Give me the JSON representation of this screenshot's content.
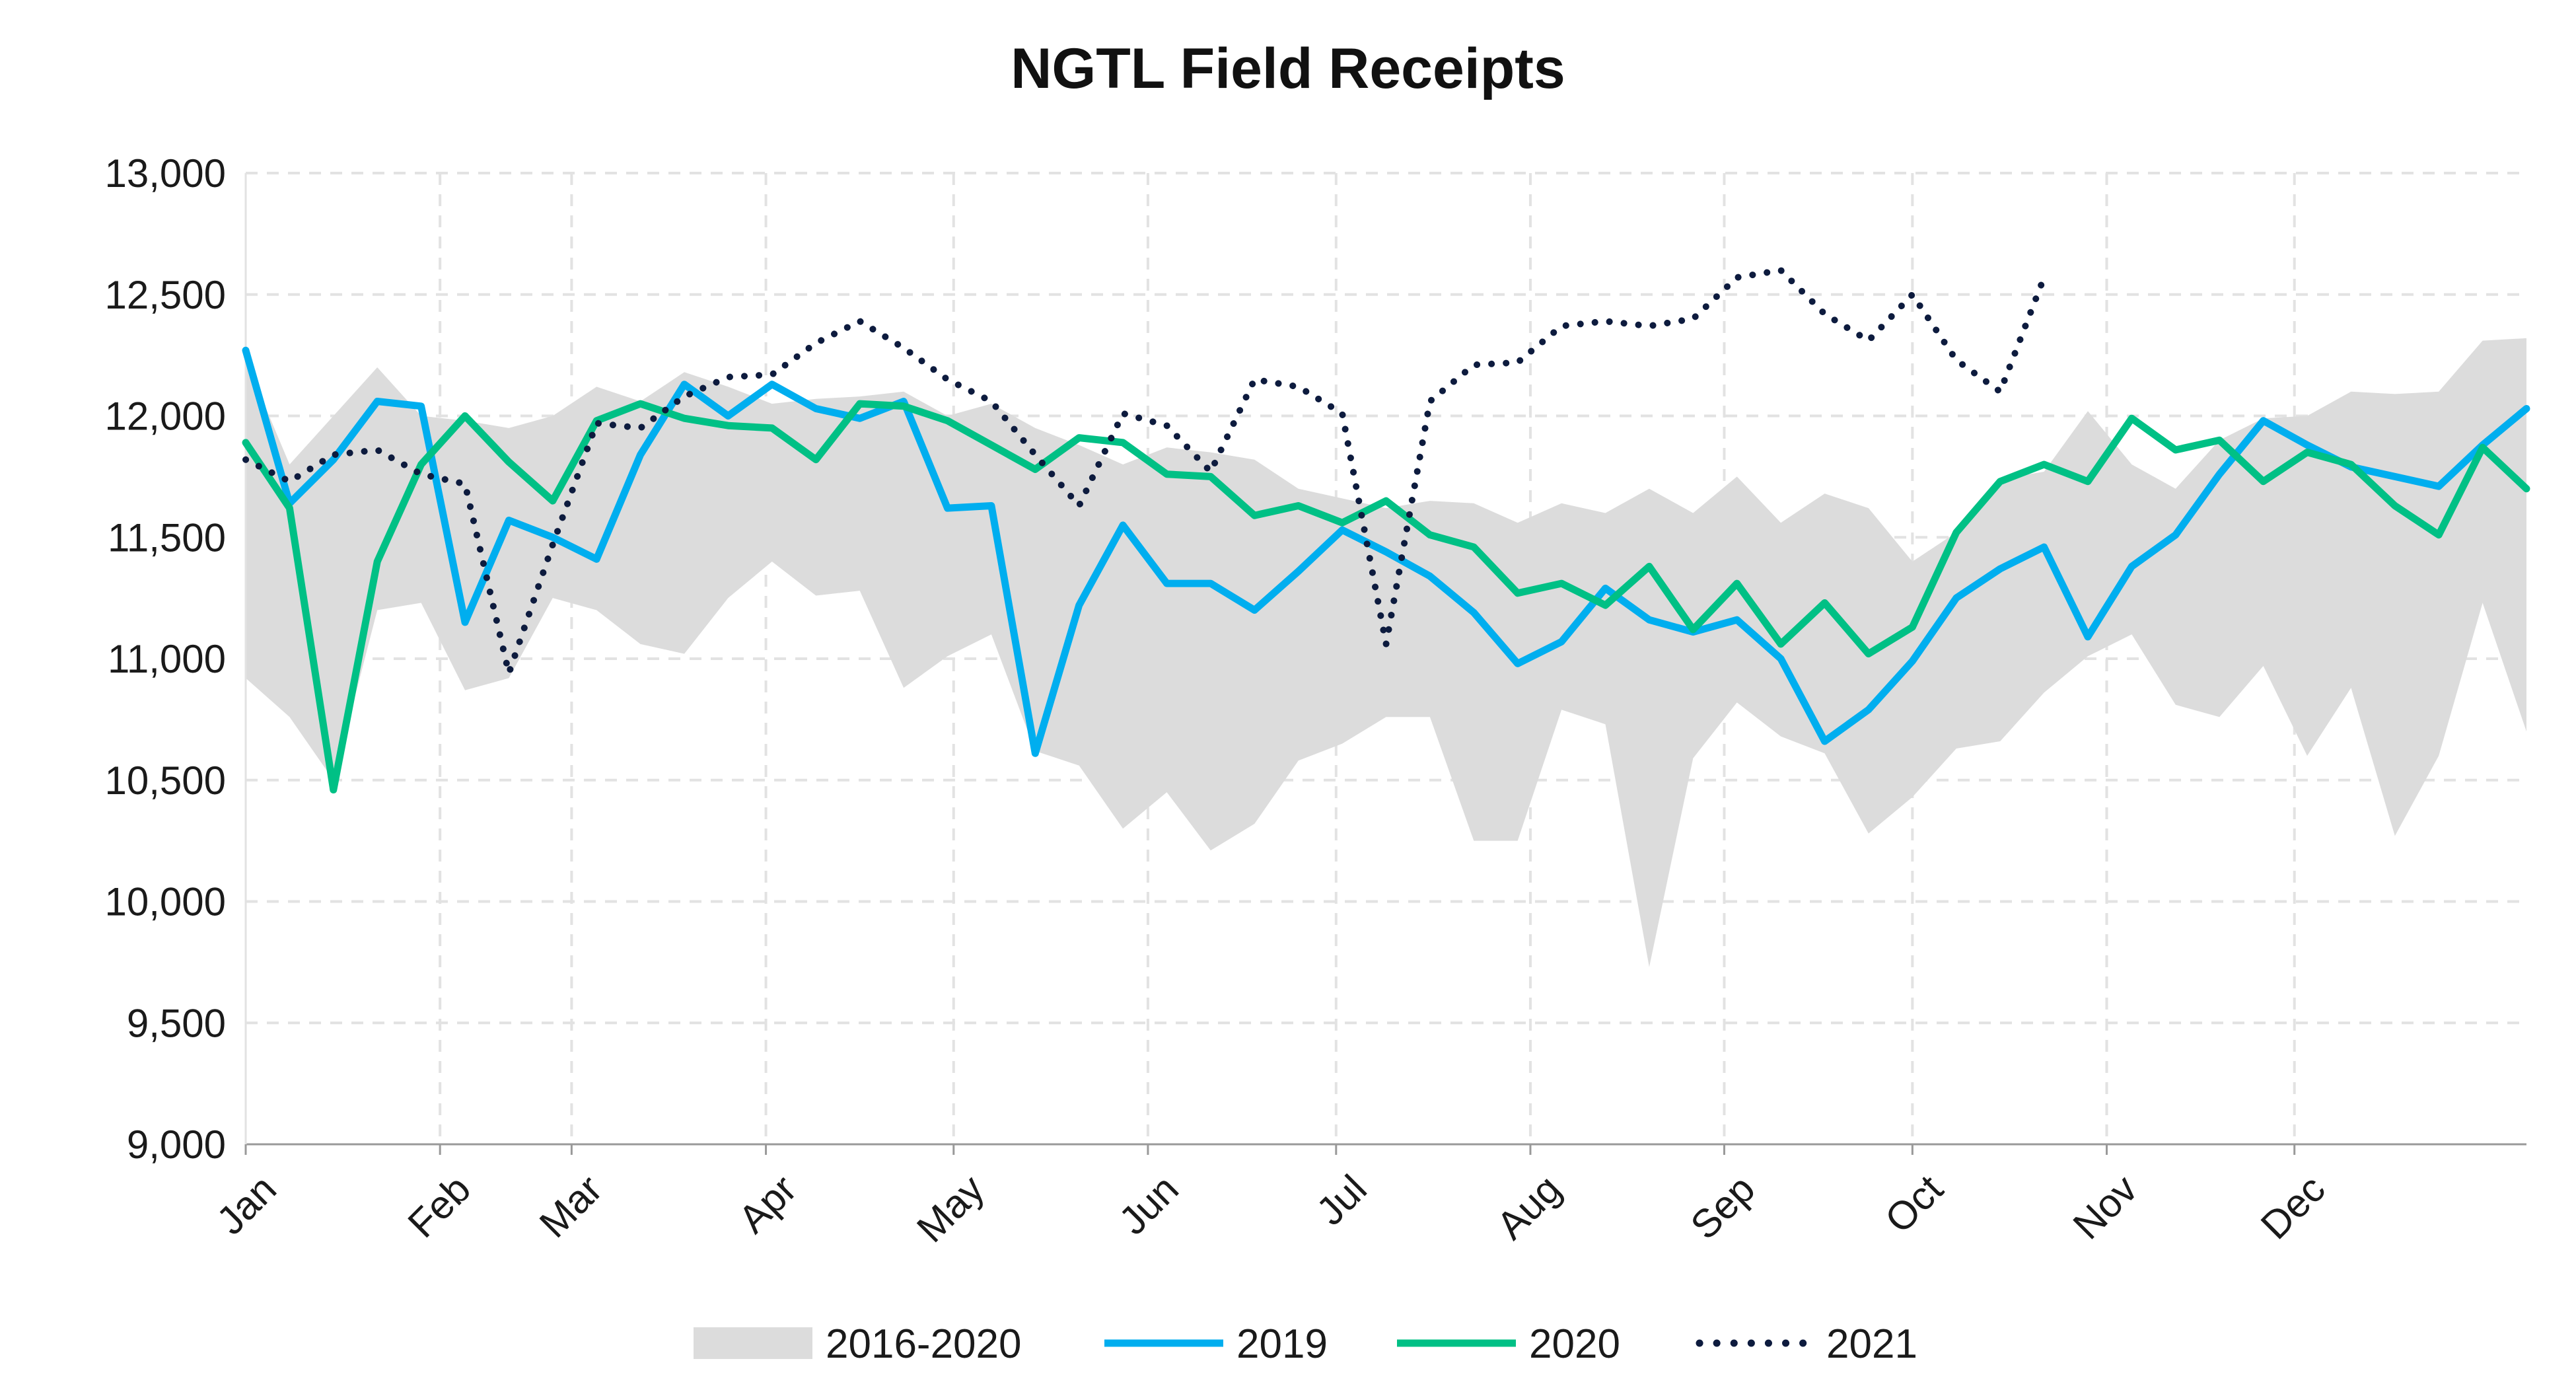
{
  "chart_data": {
    "type": "line",
    "title": "NGTL Field Receipts",
    "xlabel": "",
    "ylabel": "",
    "ylim": [
      9000,
      13000
    ],
    "yticks": [
      "9,000",
      "9,500",
      "10,000",
      "10,500",
      "11,000",
      "11,500",
      "12,000",
      "12,500",
      "13,000"
    ],
    "ytick_values": [
      9000,
      9500,
      10000,
      10500,
      11000,
      11500,
      12000,
      12500,
      13000
    ],
    "months": [
      "Jan",
      "Feb",
      "Mar",
      "Apr",
      "May",
      "Jun",
      "Jul",
      "Aug",
      "Sep",
      "Oct",
      "Nov",
      "Dec"
    ],
    "x_unit": "week",
    "grid": true,
    "legend_position": "bottom",
    "band": {
      "name": "2016-2020",
      "color": "#dcdcdc",
      "x": [
        1,
        2,
        3,
        4,
        5,
        6,
        7,
        8,
        9,
        10,
        11,
        12,
        13,
        14,
        15,
        16,
        17,
        18,
        19,
        20,
        21,
        22,
        23,
        24,
        25,
        26,
        27,
        28,
        29,
        30,
        31,
        32,
        33,
        34,
        35,
        36,
        37,
        38,
        39,
        40,
        41,
        42,
        43,
        44,
        45,
        46,
        47,
        48,
        49,
        50,
        51,
        52,
        53
      ],
      "upper": [
        12230,
        11800,
        12000,
        12200,
        12000,
        11980,
        11950,
        12000,
        12120,
        12060,
        12180,
        12120,
        12050,
        12070,
        12080,
        12100,
        12000,
        12050,
        11950,
        11880,
        11800,
        11870,
        11850,
        11820,
        11700,
        11660,
        11620,
        11650,
        11640,
        11560,
        11640,
        11600,
        11700,
        11600,
        11750,
        11560,
        11680,
        11620,
        11400,
        11520,
        11740,
        11770,
        12020,
        11800,
        11700,
        11900,
        11990,
        12000,
        12100,
        12090,
        12100,
        12310,
        12320
      ],
      "lower": [
        10920,
        10760,
        10500,
        11200,
        11230,
        10870,
        10920,
        11250,
        11200,
        11060,
        11020,
        11250,
        11400,
        11260,
        11280,
        10880,
        11010,
        11100,
        10620,
        10560,
        10300,
        10450,
        10210,
        10320,
        10580,
        10650,
        10760,
        10760,
        10250,
        10250,
        10790,
        10730,
        9730,
        10590,
        10820,
        10680,
        10610,
        10280,
        10430,
        10630,
        10660,
        10860,
        11010,
        11100,
        10810,
        10760,
        10970,
        10600,
        10880,
        10270,
        10600,
        11230,
        10700
      ]
    },
    "series": [
      {
        "name": "2019",
        "color": "#00aeef",
        "style": "solid",
        "x": [
          1,
          2,
          3,
          4,
          5,
          6,
          7,
          8,
          9,
          10,
          11,
          12,
          13,
          14,
          15,
          16,
          17,
          18,
          19,
          20,
          21,
          22,
          23,
          24,
          25,
          26,
          27,
          28,
          29,
          30,
          31,
          32,
          33,
          34,
          35,
          36,
          37,
          38,
          39,
          40,
          41,
          42,
          43,
          44,
          45,
          46,
          47,
          48,
          49,
          50,
          51,
          52,
          53
        ],
        "values": [
          12270,
          11640,
          11820,
          12060,
          12040,
          11150,
          11570,
          11500,
          11410,
          11840,
          12130,
          12000,
          12130,
          12030,
          11990,
          12060,
          11620,
          11630,
          10610,
          11220,
          11550,
          11310,
          11310,
          11200,
          11360,
          11530,
          11440,
          11340,
          11190,
          10980,
          11070,
          11290,
          11160,
          11110,
          11160,
          11000,
          10660,
          10790,
          10990,
          11250,
          11370,
          11460,
          11090,
          11380,
          11510,
          11760,
          11980,
          11880,
          11790,
          11750,
          11710,
          11880,
          12030
        ]
      },
      {
        "name": "2020",
        "color": "#00c085",
        "style": "solid",
        "x": [
          1,
          2,
          3,
          4,
          5,
          6,
          7,
          8,
          9,
          10,
          11,
          12,
          13,
          14,
          15,
          16,
          17,
          18,
          19,
          20,
          21,
          22,
          23,
          24,
          25,
          26,
          27,
          28,
          29,
          30,
          31,
          32,
          33,
          34,
          35,
          36,
          37,
          38,
          39,
          40,
          41,
          42,
          43,
          44,
          45,
          46,
          47,
          48,
          49,
          50,
          51,
          52,
          53
        ],
        "values": [
          11890,
          11620,
          10460,
          11400,
          11800,
          12000,
          11810,
          11650,
          11980,
          12050,
          11990,
          11960,
          11950,
          11820,
          12050,
          12040,
          11980,
          11880,
          11780,
          11910,
          11890,
          11760,
          11750,
          11590,
          11630,
          11560,
          11650,
          11510,
          11460,
          11270,
          11310,
          11220,
          11380,
          11120,
          11310,
          11060,
          11230,
          11020,
          11130,
          11520,
          11730,
          11800,
          11730,
          11990,
          11860,
          11900,
          11730,
          11850,
          11800,
          11630,
          11510,
          11870,
          11700
        ]
      },
      {
        "name": "2021",
        "color": "#0d1b3e",
        "style": "dotted",
        "x": [
          1,
          2,
          3,
          4,
          5,
          6,
          7,
          8,
          9,
          10,
          11,
          12,
          13,
          14,
          15,
          16,
          17,
          18,
          19,
          20,
          21,
          22,
          23,
          24,
          25,
          26,
          27,
          28,
          29,
          30,
          31,
          32,
          33,
          34,
          35,
          36,
          37,
          38,
          39,
          40,
          41,
          42
        ],
        "values": [
          11820,
          11730,
          11840,
          11860,
          11760,
          11720,
          10940,
          11470,
          11970,
          11950,
          12080,
          12160,
          12170,
          12300,
          12390,
          12280,
          12150,
          12060,
          11840,
          11630,
          12010,
          11960,
          11770,
          12150,
          12120,
          12010,
          11060,
          12060,
          12210,
          12220,
          12370,
          12390,
          12370,
          12400,
          12570,
          12600,
          12420,
          12310,
          12500,
          12230,
          12100,
          12570
        ]
      }
    ],
    "legend": [
      {
        "label": "2016-2020",
        "kind": "band",
        "color": "#dcdcdc"
      },
      {
        "label": "2019",
        "kind": "line",
        "color": "#00aeef"
      },
      {
        "label": "2020",
        "kind": "line",
        "color": "#00c085"
      },
      {
        "label": "2021",
        "kind": "dotted",
        "color": "#0d1b3e"
      }
    ]
  }
}
